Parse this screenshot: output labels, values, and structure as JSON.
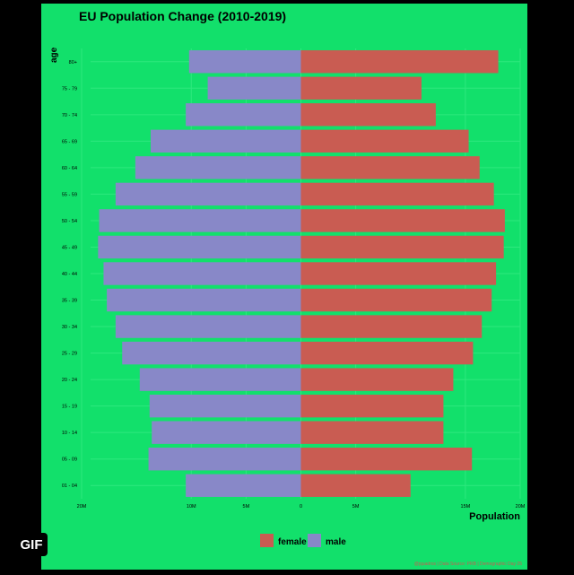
{
  "badge": {
    "label": "GIF"
  },
  "colors": {
    "background": "#12e06b",
    "female": "#c95c52",
    "male": "#8888c8",
    "grid": "#2ee87e"
  },
  "chart_data": {
    "type": "bar",
    "orientation": "horizontal-butterfly",
    "title": "EU Population Change (2010-2019)",
    "xlabel": "Population",
    "ylabel": "age",
    "xlim": [
      -20000000,
      20000000
    ],
    "x_ticks": [
      -20000000,
      -10000000,
      -5000000,
      0,
      5000000,
      15000000,
      20000000
    ],
    "x_tick_labels": [
      "20M",
      "10M",
      "5M",
      "0",
      "5M",
      "15M",
      "20M"
    ],
    "categories": [
      "01 - 04",
      "05 - 09",
      "10 - 14",
      "15 - 19",
      "20 - 24",
      "25 - 29",
      "30 - 34",
      "35 - 39",
      "40 - 44",
      "45 - 49",
      "50 - 54",
      "55 - 59",
      "60 - 64",
      "65 - 69",
      "70 - 74",
      "75 - 79",
      "80+"
    ],
    "series": [
      {
        "name": "female",
        "values": [
          10000000,
          15600000,
          13000000,
          13000000,
          13900000,
          15700000,
          16500000,
          17400000,
          17800000,
          18500000,
          18600000,
          17600000,
          16300000,
          15300000,
          12300000,
          11000000,
          18000000
        ]
      },
      {
        "name": "male",
        "values": [
          10500000,
          13900000,
          13600000,
          13800000,
          14700000,
          16300000,
          16900000,
          17700000,
          18000000,
          18500000,
          18400000,
          16900000,
          15100000,
          13700000,
          10500000,
          8500000,
          10200000
        ]
      }
    ],
    "legend": {
      "placement": "bottom",
      "entries": [
        "female",
        "male"
      ]
    },
    "grid": true,
    "caption": "@jquadros | Data Source: PRB | Demographic Day 25"
  }
}
